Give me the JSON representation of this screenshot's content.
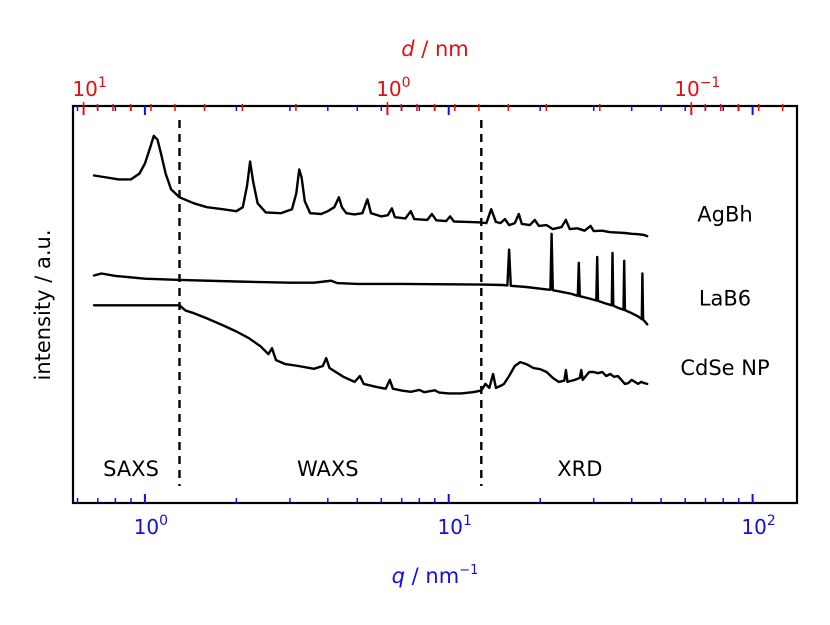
{
  "chart_data": {
    "type": "line",
    "title": "",
    "xscale": "log",
    "xlim": [
      0.58,
      140
    ],
    "ylim": [
      0,
      1
    ],
    "xlabel": {
      "var": "q",
      "sep": " / ",
      "unit": "nm",
      "exp": "−1"
    },
    "x2label": {
      "var": "d",
      "sep": " / ",
      "unit": "nm"
    },
    "ylabel": "intensity / a.u.",
    "xticks_major": [
      {
        "value": 1,
        "base": "10",
        "exp": "0"
      },
      {
        "value": 10,
        "base": "10",
        "exp": "1"
      },
      {
        "value": 100,
        "base": "10",
        "exp": "2"
      }
    ],
    "x2ticks_major": [
      {
        "value": 10,
        "base": "10",
        "exp": "1"
      },
      {
        "value": 1,
        "base": "10",
        "exp": "0"
      },
      {
        "value": 0.1,
        "base": "10",
        "exp": "−1"
      }
    ],
    "x2_relation": "d = 2π / q",
    "dividers": [
      1.3,
      12.8
    ],
    "regions": [
      {
        "label": "SAXS",
        "q": 0.9
      },
      {
        "label": "WAXS",
        "q": 4.0
      },
      {
        "label": "XRD",
        "q": 27
      }
    ],
    "series": [
      {
        "name": "AgBh",
        "points": [
          [
            0.68,
            0.825
          ],
          [
            0.75,
            0.82
          ],
          [
            0.82,
            0.815
          ],
          [
            0.9,
            0.815
          ],
          [
            0.96,
            0.83
          ],
          [
            1.0,
            0.855
          ],
          [
            1.04,
            0.895
          ],
          [
            1.07,
            0.925
          ],
          [
            1.1,
            0.915
          ],
          [
            1.13,
            0.88
          ],
          [
            1.17,
            0.83
          ],
          [
            1.22,
            0.79
          ],
          [
            1.3,
            0.77
          ],
          [
            1.45,
            0.755
          ],
          [
            1.6,
            0.745
          ],
          [
            1.8,
            0.74
          ],
          [
            2.0,
            0.735
          ],
          [
            2.1,
            0.745
          ],
          [
            2.17,
            0.8
          ],
          [
            2.22,
            0.86
          ],
          [
            2.27,
            0.81
          ],
          [
            2.35,
            0.755
          ],
          [
            2.5,
            0.732
          ],
          [
            2.8,
            0.73
          ],
          [
            3.05,
            0.74
          ],
          [
            3.15,
            0.78
          ],
          [
            3.22,
            0.84
          ],
          [
            3.28,
            0.82
          ],
          [
            3.36,
            0.76
          ],
          [
            3.5,
            0.73
          ],
          [
            3.8,
            0.728
          ],
          [
            4.0,
            0.735
          ],
          [
            4.2,
            0.745
          ],
          [
            4.35,
            0.77
          ],
          [
            4.45,
            0.745
          ],
          [
            4.6,
            0.73
          ],
          [
            4.9,
            0.727
          ],
          [
            5.2,
            0.73
          ],
          [
            5.4,
            0.765
          ],
          [
            5.55,
            0.73
          ],
          [
            6.0,
            0.722
          ],
          [
            6.3,
            0.725
          ],
          [
            6.5,
            0.742
          ],
          [
            6.65,
            0.72
          ],
          [
            7.2,
            0.717
          ],
          [
            7.5,
            0.735
          ],
          [
            7.7,
            0.715
          ],
          [
            8.5,
            0.713
          ],
          [
            8.8,
            0.728
          ],
          [
            9.1,
            0.712
          ],
          [
            9.8,
            0.71
          ],
          [
            10.1,
            0.722
          ],
          [
            10.4,
            0.709
          ],
          [
            11.5,
            0.708
          ],
          [
            12.5,
            0.707
          ],
          [
            13.3,
            0.705
          ],
          [
            13.8,
            0.74
          ],
          [
            14.3,
            0.708
          ],
          [
            14.8,
            0.705
          ],
          [
            15.3,
            0.715
          ],
          [
            15.8,
            0.7
          ],
          [
            16.5,
            0.705
          ],
          [
            17.0,
            0.728
          ],
          [
            17.4,
            0.703
          ],
          [
            18.5,
            0.7
          ],
          [
            19.2,
            0.713
          ],
          [
            19.8,
            0.698
          ],
          [
            21,
            0.7
          ],
          [
            22,
            0.69
          ],
          [
            23.5,
            0.695
          ],
          [
            24.3,
            0.713
          ],
          [
            25,
            0.69
          ],
          [
            26.5,
            0.692
          ],
          [
            28,
            0.686
          ],
          [
            29.3,
            0.698
          ],
          [
            30,
            0.685
          ],
          [
            32,
            0.686
          ],
          [
            34,
            0.682
          ],
          [
            36,
            0.681
          ],
          [
            38,
            0.68
          ],
          [
            40,
            0.678
          ],
          [
            42,
            0.677
          ],
          [
            44,
            0.675
          ],
          [
            45,
            0.672
          ]
        ]
      },
      {
        "name": "LaB6",
        "points": [
          [
            0.68,
            0.573
          ],
          [
            0.72,
            0.578
          ],
          [
            0.8,
            0.572
          ],
          [
            1.0,
            0.565
          ],
          [
            1.3,
            0.562
          ],
          [
            2.0,
            0.558
          ],
          [
            3.0,
            0.555
          ],
          [
            3.6,
            0.555
          ],
          [
            3.9,
            0.558
          ],
          [
            4.1,
            0.56
          ],
          [
            4.3,
            0.554
          ],
          [
            5.0,
            0.552
          ],
          [
            7.0,
            0.552
          ],
          [
            10,
            0.551
          ],
          [
            13,
            0.55
          ],
          [
            15,
            0.549
          ],
          [
            15.6,
            0.548
          ],
          [
            15.8,
            0.638
          ],
          [
            16.0,
            0.547
          ],
          [
            18,
            0.544
          ],
          [
            21,
            0.538
          ],
          [
            21.6,
            0.537
          ],
          [
            21.8,
            0.678
          ],
          [
            22.0,
            0.536
          ],
          [
            25,
            0.528
          ],
          [
            26.6,
            0.522
          ],
          [
            26.8,
            0.605
          ],
          [
            27.0,
            0.521
          ],
          [
            29,
            0.515
          ],
          [
            30.6,
            0.51
          ],
          [
            30.8,
            0.62
          ],
          [
            31.0,
            0.509
          ],
          [
            33,
            0.502
          ],
          [
            34.4,
            0.498
          ],
          [
            34.6,
            0.63
          ],
          [
            34.8,
            0.497
          ],
          [
            36,
            0.492
          ],
          [
            37.6,
            0.487
          ],
          [
            37.8,
            0.61
          ],
          [
            38.0,
            0.486
          ],
          [
            40,
            0.478
          ],
          [
            42,
            0.47
          ],
          [
            43.2,
            0.463
          ],
          [
            43.4,
            0.578
          ],
          [
            43.6,
            0.462
          ],
          [
            44.5,
            0.455
          ],
          [
            45,
            0.45
          ]
        ]
      },
      {
        "name": "CdSe NP",
        "points": [
          [
            0.68,
            0.498
          ],
          [
            1.0,
            0.498
          ],
          [
            1.3,
            0.498
          ],
          [
            1.36,
            0.485
          ],
          [
            1.45,
            0.478
          ],
          [
            1.6,
            0.465
          ],
          [
            1.8,
            0.448
          ],
          [
            2.0,
            0.432
          ],
          [
            2.2,
            0.415
          ],
          [
            2.4,
            0.395
          ],
          [
            2.55,
            0.375
          ],
          [
            2.62,
            0.39
          ],
          [
            2.7,
            0.36
          ],
          [
            2.9,
            0.35
          ],
          [
            3.2,
            0.345
          ],
          [
            3.6,
            0.338
          ],
          [
            3.85,
            0.345
          ],
          [
            3.95,
            0.365
          ],
          [
            4.05,
            0.34
          ],
          [
            4.5,
            0.318
          ],
          [
            4.9,
            0.305
          ],
          [
            5.1,
            0.32
          ],
          [
            5.25,
            0.3
          ],
          [
            5.8,
            0.292
          ],
          [
            6.2,
            0.288
          ],
          [
            6.4,
            0.31
          ],
          [
            6.55,
            0.288
          ],
          [
            7.0,
            0.283
          ],
          [
            7.5,
            0.28
          ],
          [
            8.0,
            0.285
          ],
          [
            8.3,
            0.279
          ],
          [
            9.0,
            0.284
          ],
          [
            9.3,
            0.278
          ],
          [
            10,
            0.276
          ],
          [
            11,
            0.276
          ],
          [
            12,
            0.279
          ],
          [
            12.8,
            0.283
          ],
          [
            13.2,
            0.3
          ],
          [
            13.6,
            0.29
          ],
          [
            14.0,
            0.325
          ],
          [
            14.3,
            0.29
          ],
          [
            14.8,
            0.295
          ],
          [
            15.2,
            0.3
          ],
          [
            15.8,
            0.32
          ],
          [
            16.5,
            0.345
          ],
          [
            17.2,
            0.355
          ],
          [
            18.0,
            0.35
          ],
          [
            19,
            0.34
          ],
          [
            20,
            0.337
          ],
          [
            21,
            0.33
          ],
          [
            22,
            0.315
          ],
          [
            23,
            0.305
          ],
          [
            24,
            0.308
          ],
          [
            24.3,
            0.335
          ],
          [
            24.6,
            0.305
          ],
          [
            26,
            0.31
          ],
          [
            27,
            0.315
          ],
          [
            27.3,
            0.335
          ],
          [
            27.6,
            0.31
          ],
          [
            29,
            0.33
          ],
          [
            30,
            0.33
          ],
          [
            31,
            0.327
          ],
          [
            32,
            0.33
          ],
          [
            33,
            0.32
          ],
          [
            34,
            0.325
          ],
          [
            35,
            0.318
          ],
          [
            36,
            0.32
          ],
          [
            37,
            0.31
          ],
          [
            38,
            0.3
          ],
          [
            39,
            0.302
          ],
          [
            40,
            0.31
          ],
          [
            41,
            0.305
          ],
          [
            42,
            0.3
          ],
          [
            43,
            0.305
          ],
          [
            44,
            0.302
          ],
          [
            45,
            0.3
          ]
        ]
      }
    ],
    "legend": [
      {
        "label": "AgBh",
        "series": 0
      },
      {
        "label": "LaB6",
        "series": 1
      },
      {
        "label": "CdSe NP",
        "series": 2
      }
    ]
  }
}
